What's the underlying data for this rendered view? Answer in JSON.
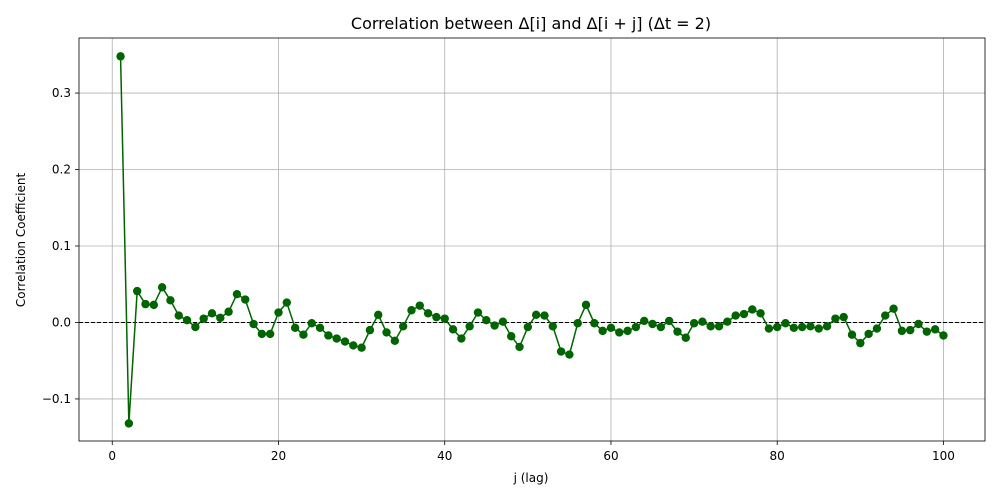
{
  "chart_data": {
    "type": "line",
    "title": "Correlation between Δ[i] and Δ[i + j] (Δt = 2)",
    "xlabel": "j (lag)",
    "ylabel": "Correlation Coefficient",
    "xlim": [
      -4,
      105
    ],
    "ylim": [
      -0.155,
      0.372
    ],
    "xticks": [
      0,
      20,
      40,
      60,
      80,
      100
    ],
    "xtick_labels": [
      "0",
      "20",
      "40",
      "60",
      "80",
      "100"
    ],
    "yticks": [
      -0.1,
      0.0,
      0.1,
      0.2,
      0.3
    ],
    "ytick_labels": [
      "−0.1",
      "0.0",
      "0.1",
      "0.2",
      "0.3"
    ],
    "grid": true,
    "reference_line": {
      "y": 0,
      "style": "dashed",
      "color": "#000000"
    },
    "series_color": "#006400",
    "series": [
      {
        "x": [
          1,
          2,
          3,
          4,
          5,
          6,
          7,
          8,
          9,
          10,
          11,
          12,
          13,
          14,
          15,
          16,
          17,
          18,
          19,
          20,
          21,
          22,
          23,
          24,
          25,
          26,
          27,
          28,
          29,
          30,
          31,
          32,
          33,
          34,
          35,
          36,
          37,
          38,
          39,
          40,
          41,
          42,
          43,
          44,
          45,
          46,
          47,
          48,
          49,
          50,
          51,
          52,
          53,
          54,
          55,
          56,
          57,
          58,
          59,
          60,
          61,
          62,
          63,
          64,
          65,
          66,
          67,
          68,
          69,
          70,
          71,
          72,
          73,
          74,
          75,
          76,
          77,
          78,
          79,
          80,
          81,
          82,
          83,
          84,
          85,
          86,
          87,
          88,
          89,
          90,
          91,
          92,
          93,
          94,
          95,
          96,
          97,
          98,
          99,
          100
        ],
        "values": [
          0.348,
          -0.132,
          0.041,
          0.024,
          0.023,
          0.046,
          0.029,
          0.009,
          0.003,
          -0.006,
          0.005,
          0.012,
          0.006,
          0.014,
          0.037,
          0.03,
          -0.002,
          -0.015,
          -0.015,
          0.013,
          0.026,
          -0.007,
          -0.016,
          -0.001,
          -0.007,
          -0.017,
          -0.021,
          -0.025,
          -0.03,
          -0.033,
          -0.01,
          0.01,
          -0.013,
          -0.024,
          -0.005,
          0.016,
          0.022,
          0.012,
          0.007,
          0.005,
          -0.009,
          -0.021,
          -0.005,
          0.013,
          0.003,
          -0.004,
          0.001,
          -0.018,
          -0.032,
          -0.006,
          0.01,
          0.009,
          -0.005,
          -0.038,
          -0.042,
          -0.001,
          0.023,
          -0.001,
          -0.011,
          -0.007,
          -0.013,
          -0.011,
          -0.006,
          0.002,
          -0.002,
          -0.006,
          0.002,
          -0.012,
          -0.02,
          -0.001,
          0.001,
          -0.005,
          -0.005,
          0.001,
          0.009,
          0.011,
          0.017,
          0.012,
          -0.008,
          -0.006,
          -0.001,
          -0.007,
          -0.006,
          -0.005,
          -0.008,
          -0.005,
          0.005,
          0.007,
          -0.016,
          -0.027,
          -0.015,
          -0.008,
          0.009,
          0.018,
          -0.011,
          -0.01,
          -0.002,
          -0.012,
          -0.009,
          -0.017
        ]
      }
    ]
  }
}
